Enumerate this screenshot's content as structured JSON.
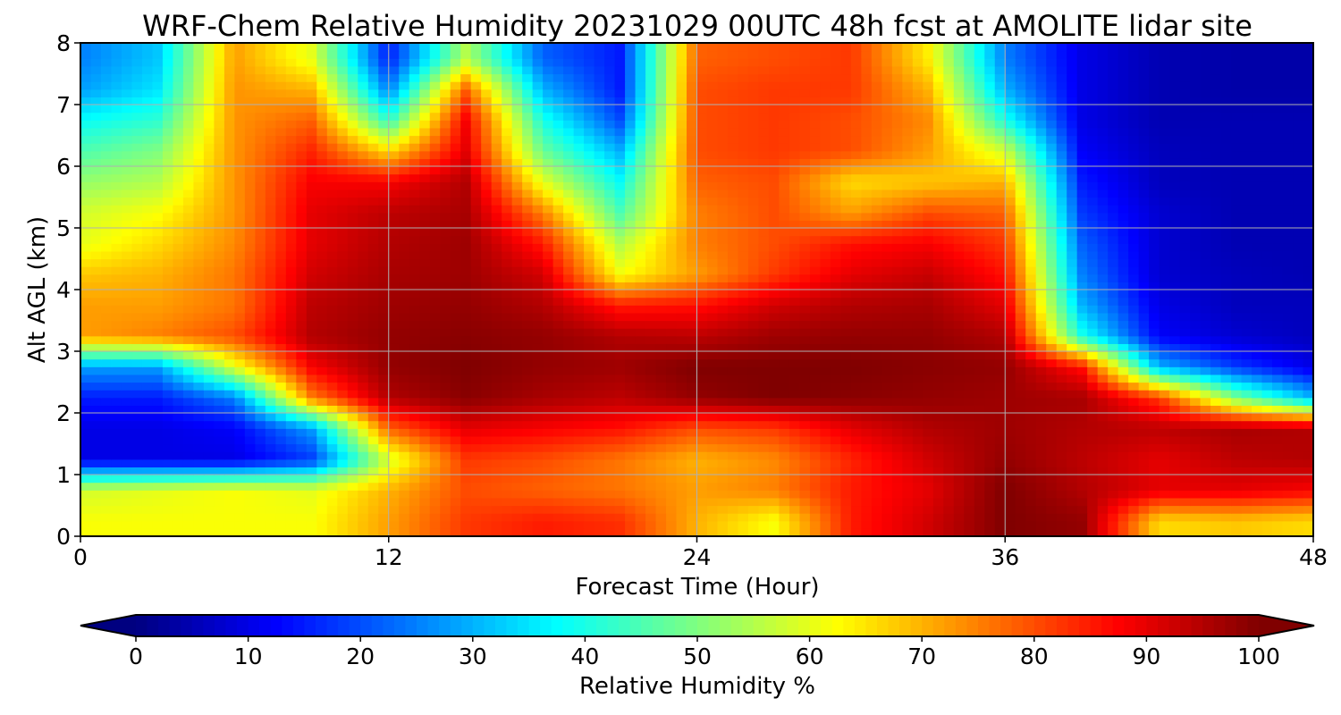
{
  "chart_data": [
    {
      "type": "heatmap",
      "title": "WRF-Chem Relative Humidity 20231029 00UTC 48h fcst at AMOLITE lidar site",
      "xlabel": "Forecast Time (Hour)",
      "ylabel": "Alt AGL (km)",
      "xlim": [
        0,
        48
      ],
      "ylim": [
        0,
        8
      ],
      "xticks": [
        0,
        12,
        24,
        36,
        48
      ],
      "yticks": [
        0,
        1,
        2,
        3,
        4,
        5,
        6,
        7,
        8
      ],
      "grid": true,
      "colormap": "jet",
      "x": [
        0,
        3,
        6,
        9,
        12,
        15,
        18,
        21,
        24,
        27,
        30,
        33,
        36,
        39,
        42,
        45,
        48
      ],
      "y": [
        0.25,
        0.75,
        1.25,
        1.75,
        2.25,
        2.75,
        3.25,
        3.75,
        4.25,
        4.75,
        5.25,
        5.75,
        6.25,
        6.75,
        7.25,
        7.75
      ],
      "values": [
        [
          62,
          62,
          62,
          62,
          72,
          82,
          85,
          83,
          70,
          62,
          85,
          92,
          100,
          98,
          66,
          68,
          66
        ],
        [
          58,
          60,
          62,
          60,
          70,
          80,
          78,
          76,
          72,
          75,
          85,
          90,
          100,
          95,
          90,
          90,
          88
        ],
        [
          10,
          10,
          10,
          18,
          58,
          82,
          80,
          76,
          70,
          74,
          84,
          92,
          98,
          94,
          90,
          94,
          95
        ],
        [
          10,
          10,
          12,
          28,
          78,
          90,
          88,
          86,
          80,
          82,
          90,
          95,
          97,
          95,
          94,
          96,
          95
        ],
        [
          15,
          15,
          25,
          75,
          95,
          99,
          96,
          94,
          98,
          100,
          99,
          98,
          97,
          96,
          82,
          50,
          30
        ],
        [
          28,
          28,
          60,
          88,
          98,
          100,
          98,
          97,
          100,
          100,
          100,
          99,
          98,
          86,
          30,
          18,
          10
        ],
        [
          72,
          75,
          80,
          95,
          98,
          99,
          98,
          95,
          94,
          97,
          98,
          98,
          95,
          40,
          12,
          8,
          6
        ],
        [
          72,
          72,
          76,
          94,
          97,
          98,
          95,
          85,
          86,
          92,
          95,
          96,
          90,
          30,
          10,
          6,
          6
        ],
        [
          68,
          70,
          76,
          92,
          96,
          97,
          92,
          62,
          72,
          82,
          90,
          93,
          86,
          25,
          8,
          6,
          5
        ],
        [
          60,
          66,
          74,
          90,
          95,
          97,
          85,
          55,
          75,
          80,
          86,
          88,
          82,
          22,
          8,
          5,
          5
        ],
        [
          58,
          62,
          73,
          90,
          94,
          96,
          75,
          45,
          75,
          80,
          72,
          80,
          78,
          18,
          8,
          5,
          5
        ],
        [
          52,
          55,
          73,
          88,
          88,
          95,
          60,
          38,
          78,
          80,
          66,
          68,
          70,
          15,
          6,
          5,
          5
        ],
        [
          45,
          50,
          73,
          84,
          66,
          90,
          48,
          30,
          80,
          82,
          80,
          72,
          58,
          12,
          6,
          5,
          5
        ],
        [
          38,
          42,
          73,
          78,
          42,
          88,
          40,
          20,
          80,
          82,
          80,
          74,
          40,
          10,
          5,
          5,
          5
        ],
        [
          28,
          35,
          73,
          70,
          25,
          78,
          30,
          15,
          80,
          82,
          82,
          70,
          30,
          10,
          5,
          4,
          4
        ],
        [
          25,
          32,
          72,
          60,
          15,
          55,
          22,
          15,
          78,
          80,
          82,
          64,
          25,
          10,
          5,
          4,
          4
        ]
      ],
      "colorbar": {
        "label": "Relative Humidity %",
        "ticks": [
          0,
          10,
          20,
          30,
          40,
          50,
          60,
          70,
          80,
          90,
          100
        ],
        "min": 0,
        "max": 100,
        "extend": "both"
      }
    }
  ]
}
